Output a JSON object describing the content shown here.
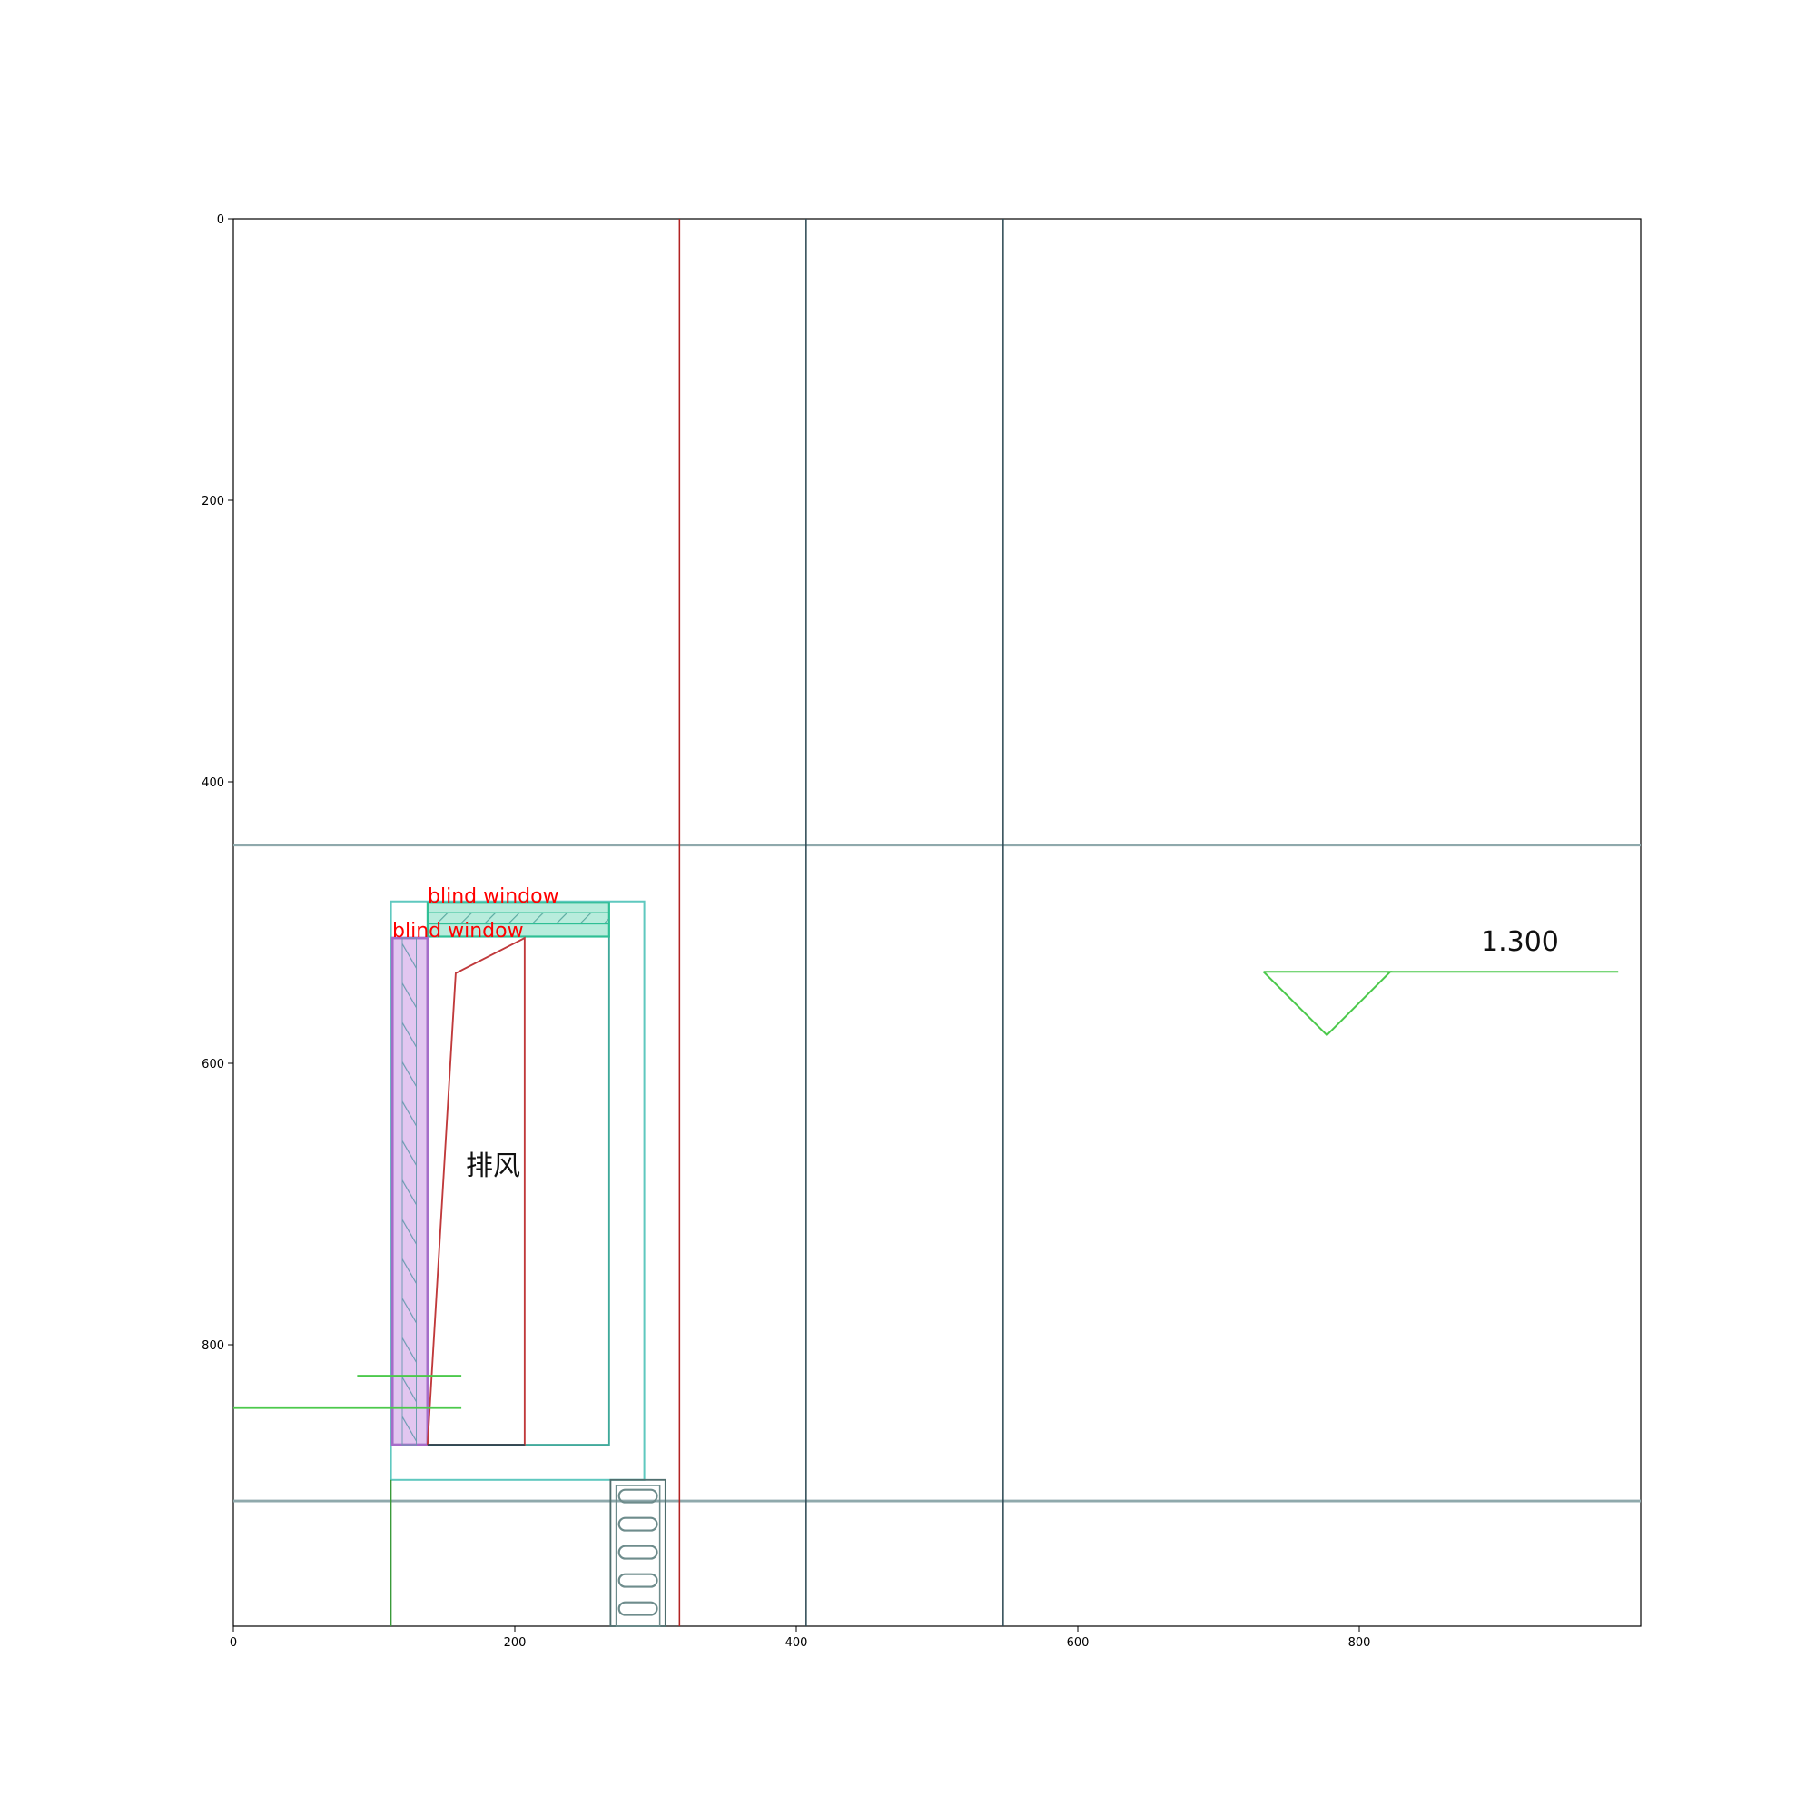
{
  "chart_data": {
    "type": "diagram",
    "title": "",
    "xlim": [
      0,
      1000
    ],
    "ylim": [
      1000,
      0
    ],
    "x_ticks": [
      "0",
      "200",
      "400",
      "600",
      "800"
    ],
    "y_ticks": [
      "0",
      "200",
      "400",
      "600",
      "800"
    ],
    "annotations": [
      {
        "label": "blind window",
        "x": 138,
        "y": 486
      },
      {
        "label": "blind window",
        "x": 113,
        "y": 511
      }
    ],
    "room_label": {
      "text": "排风",
      "x": 185,
      "y": 672
    },
    "elevation": {
      "text": "1.300",
      "x": 912,
      "y": 512
    },
    "colors": {
      "grid_axis": "#8fa9ac",
      "grid_dark": "#2e4a55",
      "red_line": "#b22222",
      "teal": "#3cbfa7",
      "purple": "#a56cc9",
      "purple_fill": "#e2c6f0",
      "green": "#4cc94c",
      "ladder": "#6e8c8c",
      "annotation": "#ff0000"
    }
  }
}
